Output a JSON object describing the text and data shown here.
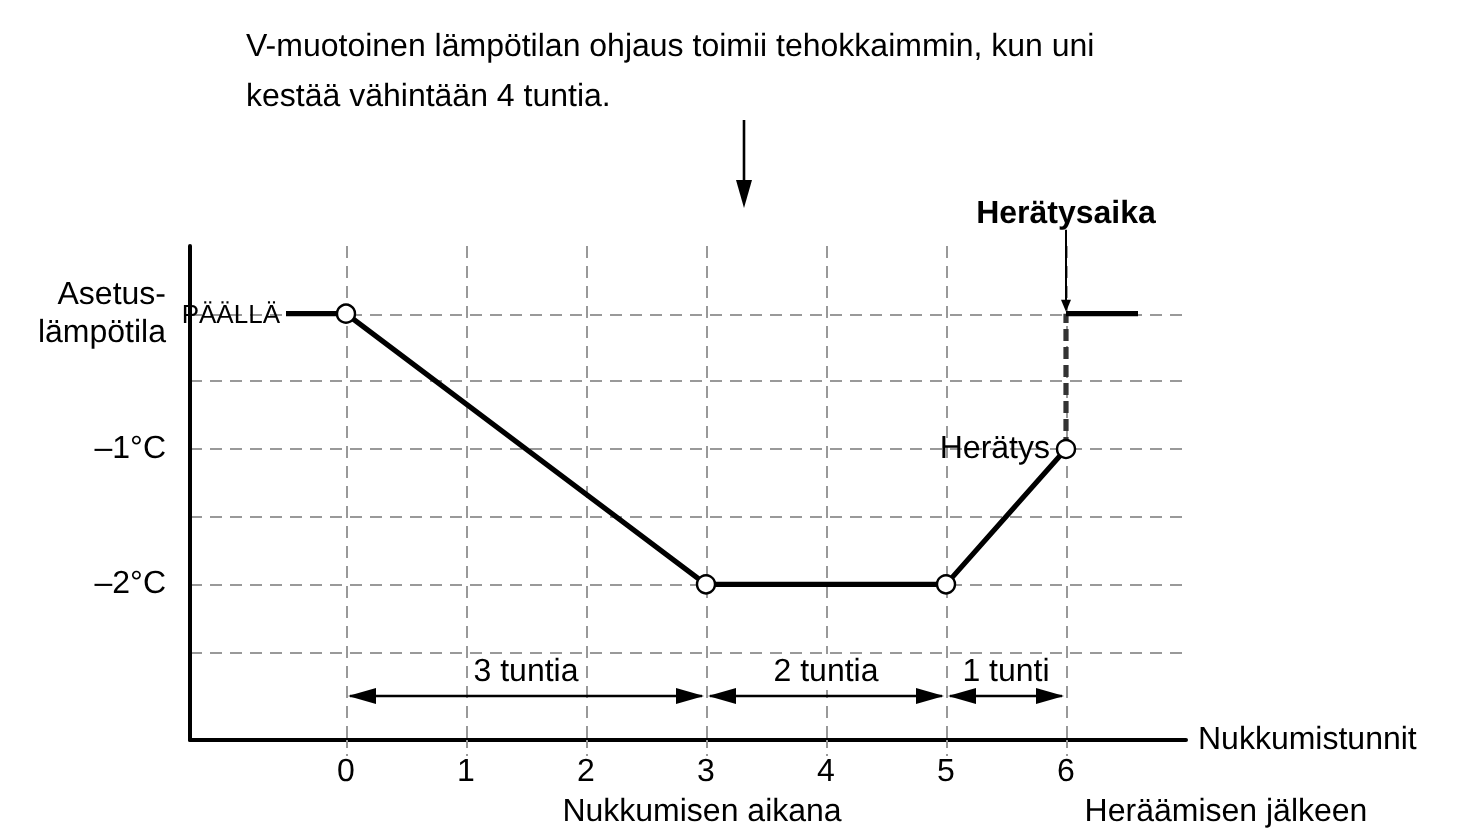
{
  "chart_data": {
    "type": "line",
    "title": "V-muotoinen lämpötilan ohjaus toimii tehokkaimmin, kun uni kestää vähintään 4 tuntia.",
    "xlabel": "Nukkumistunnit",
    "xlim": [
      -1.3,
      7
    ],
    "xticks": [
      0,
      1,
      2,
      3,
      4,
      5,
      6
    ],
    "ylim": [
      -3.15,
      0.5
    ],
    "yticks": [
      {
        "value": -2.5,
        "label": null
      },
      {
        "value": -2,
        "label": "–2°C"
      },
      {
        "value": -1.5,
        "label": null
      },
      {
        "value": -1,
        "label": "–1°C"
      },
      {
        "value": -0.5,
        "label": null
      },
      {
        "value": 0,
        "label": "Asetus-\nlämpötila"
      }
    ],
    "grid": true,
    "series": [
      {
        "color": "#000000",
        "x": [
          -0.5,
          0
        ],
        "values": [
          0,
          0
        ],
        "line_style": "solid"
      },
      {
        "color": "#000000",
        "x": [
          0,
          3,
          5,
          6
        ],
        "values": [
          0,
          -2,
          -2,
          -1
        ],
        "marker": "circle",
        "line_style": "solid"
      },
      {
        "color": "#333333",
        "x": [
          6,
          6
        ],
        "values": [
          -1,
          0
        ],
        "line_style": "dashed"
      },
      {
        "color": "#000000",
        "x": [
          6,
          6.6
        ],
        "values": [
          0,
          0
        ],
        "line_style": "solid"
      }
    ],
    "annotations": [
      "PÄÄLLÄ",
      "Herätys",
      "Herätysaika",
      "3 tuntia",
      "2 tuntia",
      "1 tunti",
      "Nukkumisen aikana",
      "Heräämisen jälkeen"
    ]
  }
}
